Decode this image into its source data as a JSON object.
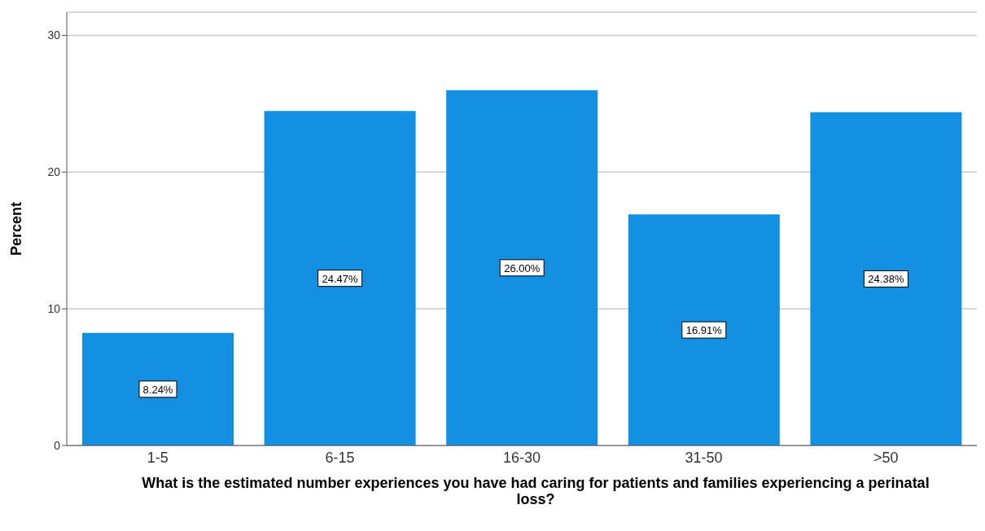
{
  "chart_data": {
    "type": "bar",
    "xlabel": "What is the estimated number experiences you have had caring for patients and families experiencing a perinatal loss?",
    "ylabel": "Percent",
    "categories": [
      "1-5",
      "6-15",
      "16-30",
      "31-50",
      ">50"
    ],
    "values": [
      8.24,
      24.47,
      26.0,
      16.91,
      24.38
    ],
    "value_labels": [
      "8.24%",
      "24.47%",
      "26.00%",
      "16.91%",
      "24.38%"
    ],
    "color": "#1490e3",
    "ylim": [
      0,
      31.7
    ],
    "yticks": [
      0,
      10,
      20,
      30
    ],
    "grid": "y",
    "legend": false
  }
}
